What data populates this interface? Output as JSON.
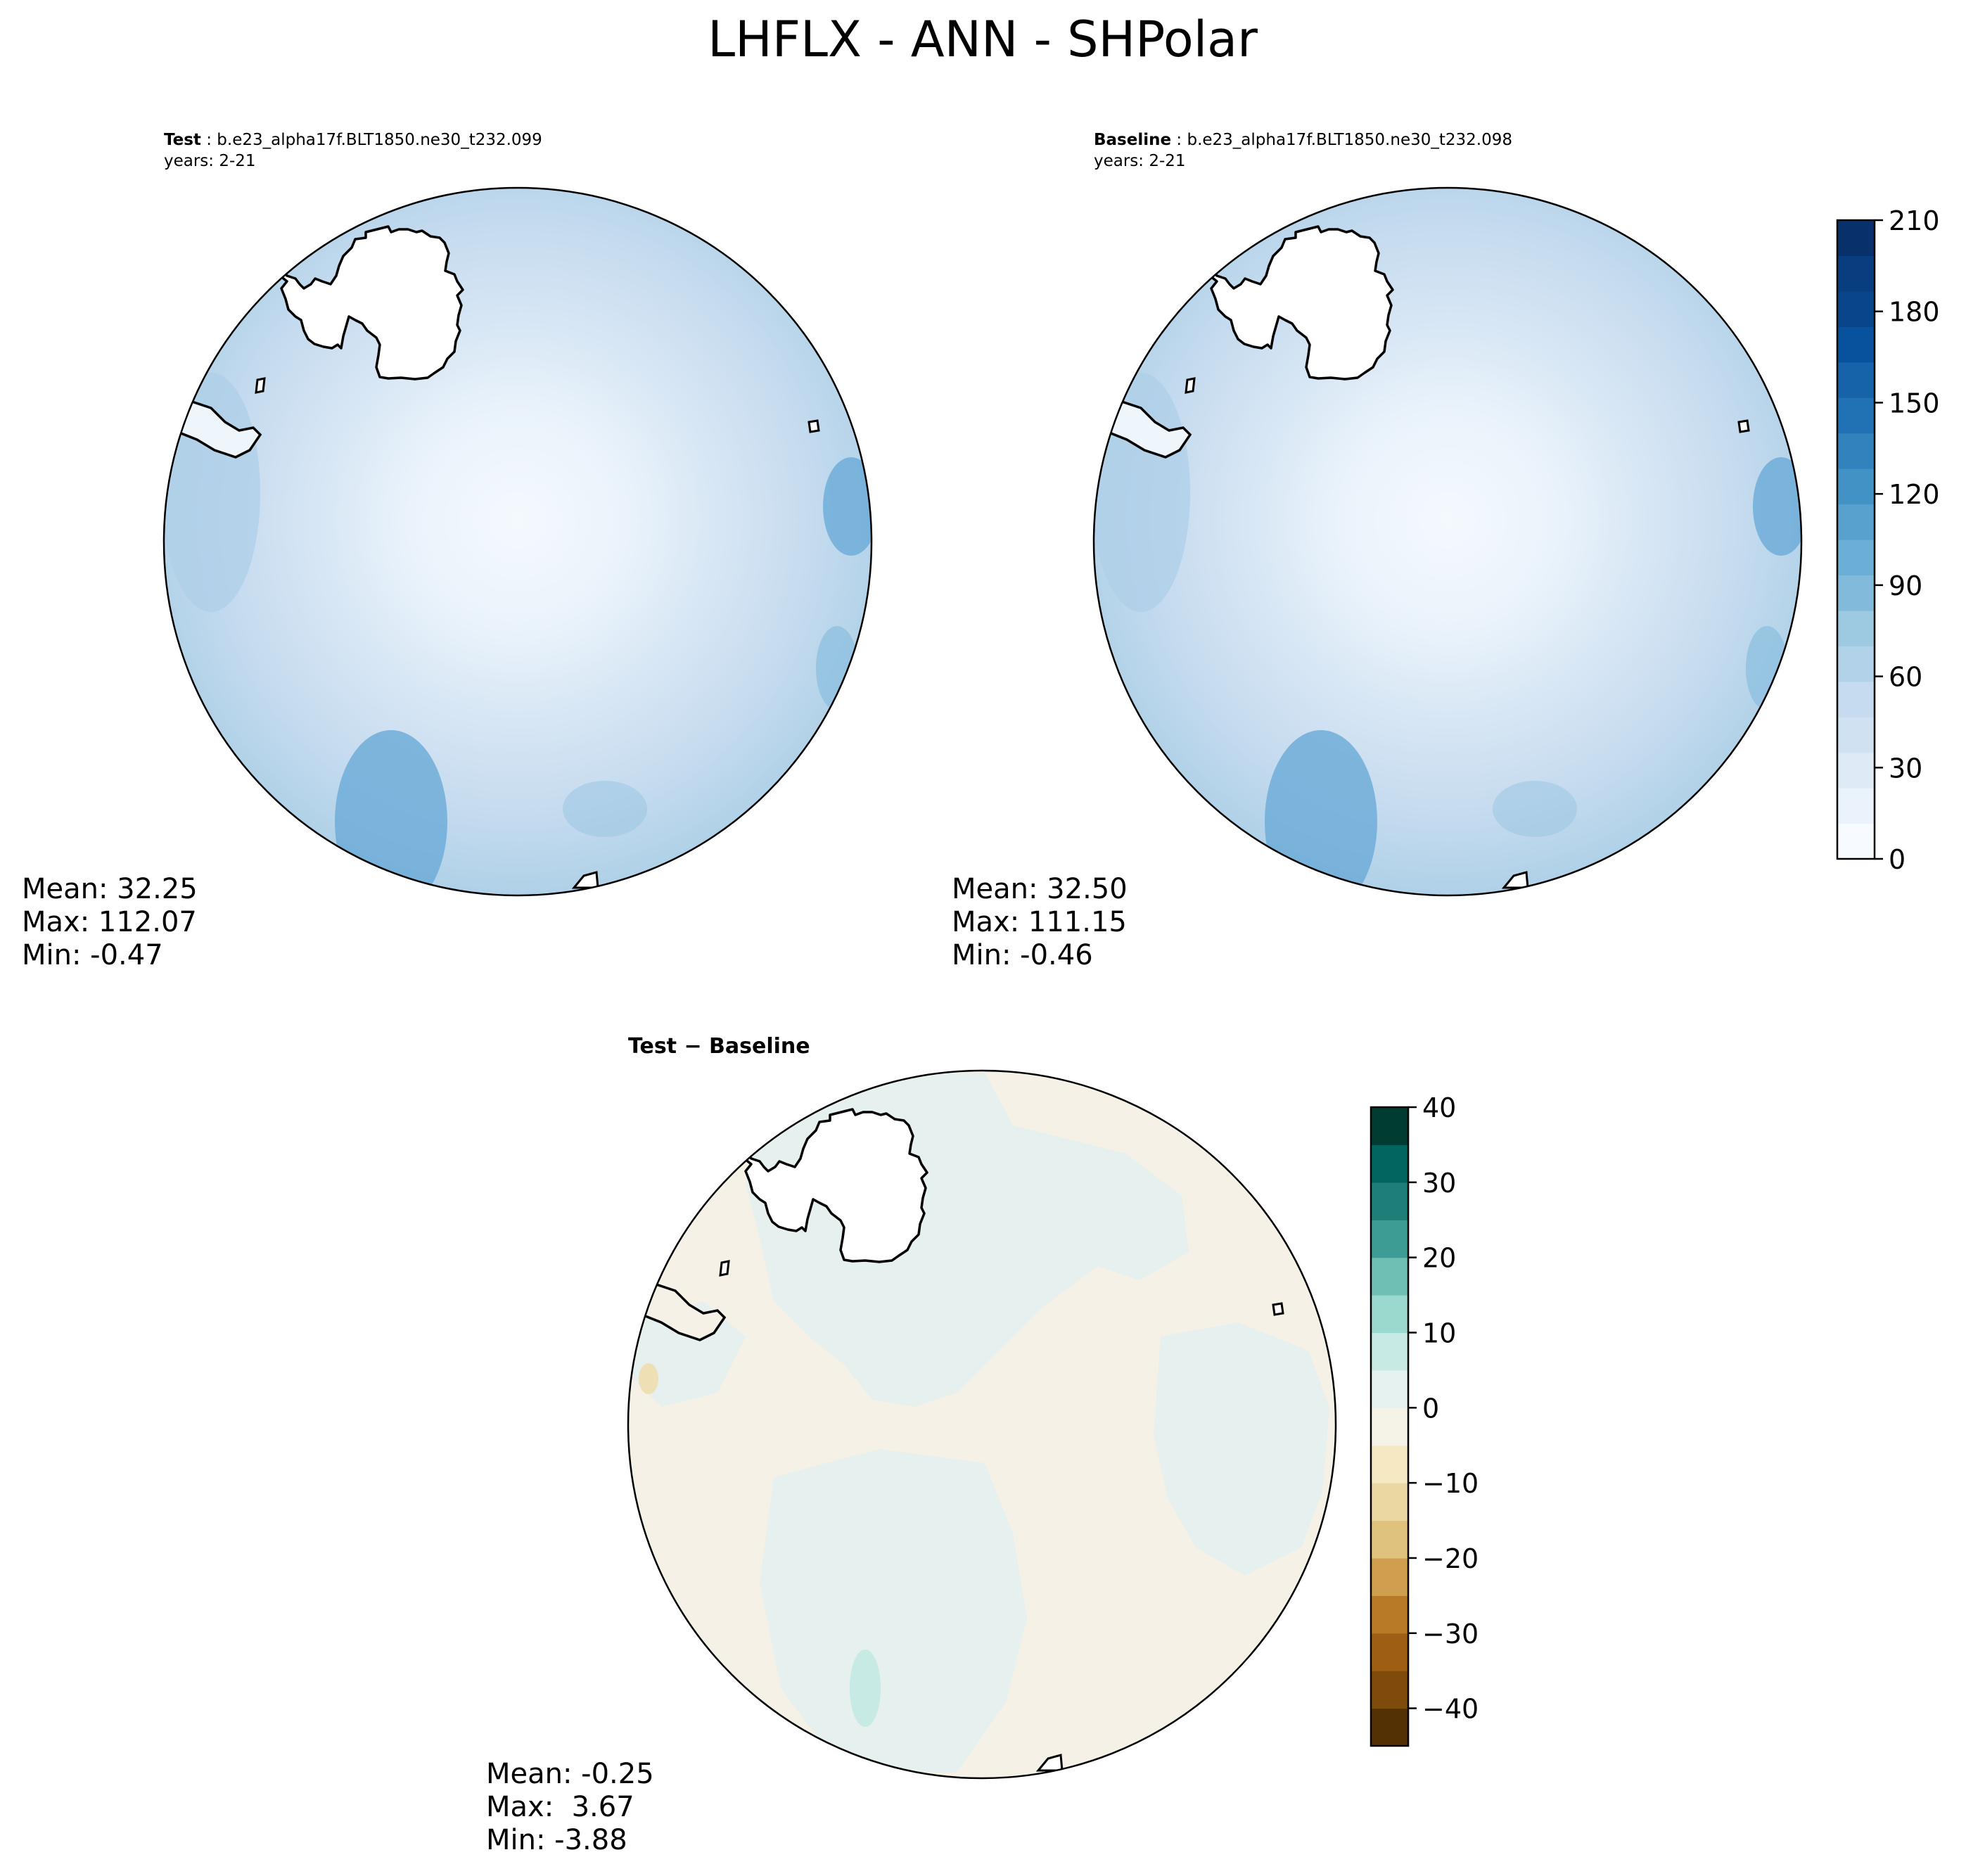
{
  "title": "LHFLX - ANN - SHPolar",
  "panels": [
    {
      "id": "test",
      "label_bold": "Test",
      "label_rest": " : b.e23_alpha17f.BLT1850.ne30_t232.099",
      "years": "years: 2-21",
      "stats": [
        "Mean: 32.25",
        "Max: 112.07",
        "Min: -0.47"
      ]
    },
    {
      "id": "baseline",
      "label_bold": "Baseline",
      "label_rest": " : b.e23_alpha17f.BLT1850.ne30_t232.098",
      "years": "years: 2-21",
      "stats": [
        "Mean: 32.50",
        "Max: 111.15",
        "Min: -0.46"
      ]
    },
    {
      "id": "diff",
      "label_bold": "Test − Baseline",
      "stats": [
        "Mean: -0.25",
        "Max:  3.67",
        "Min: -3.88"
      ]
    }
  ],
  "colorbars": {
    "main": {
      "ticks": [
        "0",
        "30",
        "60",
        "90",
        "120",
        "150",
        "180",
        "210"
      ],
      "colors": [
        "#f7fbff",
        "#eaf3fb",
        "#deebf7",
        "#d0e2f2",
        "#c6dbef",
        "#b1d2e8",
        "#9ecae1",
        "#81badb",
        "#6baed6",
        "#58a1cf",
        "#4292c6",
        "#3282be",
        "#2171b5",
        "#1663aa",
        "#08519c",
        "#08458a",
        "#083d7f",
        "#08306b"
      ]
    },
    "diff": {
      "ticks": [
        "40",
        "30",
        "20",
        "10",
        "0",
        "−10",
        "−20",
        "−30",
        "−40"
      ],
      "colors": [
        "#543005",
        "#7f4b0b",
        "#9e5f14",
        "#b97a27",
        "#cf9e4f",
        "#dfc27d",
        "#ebd7a2",
        "#f6e8c3",
        "#f5f2e8",
        "#e6f2ef",
        "#c7eae5",
        "#9bd8cd",
        "#6fbfb4",
        "#3d9c93",
        "#1d7f77",
        "#01665e",
        "#003c30"
      ]
    }
  },
  "chart_data": {
    "type": "heatmap",
    "title": "LHFLX - ANN - SHPolar",
    "projection": "south polar stereographic",
    "panels": [
      {
        "name": "Test",
        "case": "b.e23_alpha17f.BLT1850.ne30_t232.099",
        "years": "2-21",
        "mean": 32.25,
        "max": 112.07,
        "min": -0.47,
        "colorbar": "main"
      },
      {
        "name": "Baseline",
        "case": "b.e23_alpha17f.BLT1850.ne30_t232.098",
        "years": "2-21",
        "mean": 32.5,
        "max": 111.15,
        "min": -0.46,
        "colorbar": "main"
      },
      {
        "name": "Test − Baseline",
        "mean": -0.25,
        "max": 3.67,
        "min": -3.88,
        "colorbar": "diff"
      }
    ],
    "colorbar_main": {
      "range": [
        0,
        210
      ],
      "ticks": [
        0,
        30,
        60,
        90,
        120,
        150,
        180,
        210
      ],
      "levels": 18
    },
    "colorbar_diff": {
      "range": [
        -45,
        40
      ],
      "ticks": [
        -40,
        -30,
        -20,
        -10,
        0,
        10,
        20,
        30,
        40
      ],
      "levels": 17
    }
  }
}
